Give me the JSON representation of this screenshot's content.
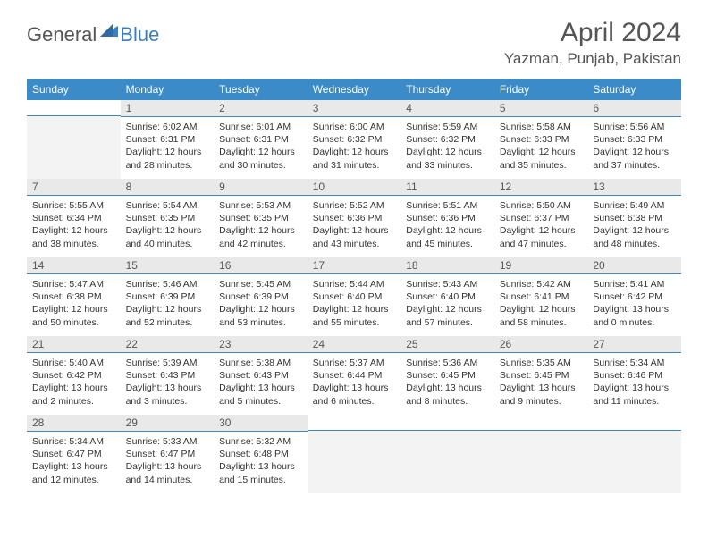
{
  "logo": {
    "text1": "General",
    "text2": "Blue"
  },
  "title": "April 2024",
  "location": "Yazman, Punjab, Pakistan",
  "colors": {
    "header_bg": "#3b8bc9",
    "header_fg": "#ffffff",
    "daynum_bg": "#e9e9e9",
    "daynum_border": "#3b8bc9",
    "logo_blue": "#3b7fbf",
    "text": "#555555",
    "empty_bg": "#f3f3f3"
  },
  "weekdays": [
    "Sunday",
    "Monday",
    "Tuesday",
    "Wednesday",
    "Thursday",
    "Friday",
    "Saturday"
  ],
  "weeks": [
    [
      {
        "day": "",
        "sunrise": "",
        "sunset": "",
        "daylight1": "",
        "daylight2": ""
      },
      {
        "day": "1",
        "sunrise": "Sunrise: 6:02 AM",
        "sunset": "Sunset: 6:31 PM",
        "daylight1": "Daylight: 12 hours",
        "daylight2": "and 28 minutes."
      },
      {
        "day": "2",
        "sunrise": "Sunrise: 6:01 AM",
        "sunset": "Sunset: 6:31 PM",
        "daylight1": "Daylight: 12 hours",
        "daylight2": "and 30 minutes."
      },
      {
        "day": "3",
        "sunrise": "Sunrise: 6:00 AM",
        "sunset": "Sunset: 6:32 PM",
        "daylight1": "Daylight: 12 hours",
        "daylight2": "and 31 minutes."
      },
      {
        "day": "4",
        "sunrise": "Sunrise: 5:59 AM",
        "sunset": "Sunset: 6:32 PM",
        "daylight1": "Daylight: 12 hours",
        "daylight2": "and 33 minutes."
      },
      {
        "day": "5",
        "sunrise": "Sunrise: 5:58 AM",
        "sunset": "Sunset: 6:33 PM",
        "daylight1": "Daylight: 12 hours",
        "daylight2": "and 35 minutes."
      },
      {
        "day": "6",
        "sunrise": "Sunrise: 5:56 AM",
        "sunset": "Sunset: 6:33 PM",
        "daylight1": "Daylight: 12 hours",
        "daylight2": "and 37 minutes."
      }
    ],
    [
      {
        "day": "7",
        "sunrise": "Sunrise: 5:55 AM",
        "sunset": "Sunset: 6:34 PM",
        "daylight1": "Daylight: 12 hours",
        "daylight2": "and 38 minutes."
      },
      {
        "day": "8",
        "sunrise": "Sunrise: 5:54 AM",
        "sunset": "Sunset: 6:35 PM",
        "daylight1": "Daylight: 12 hours",
        "daylight2": "and 40 minutes."
      },
      {
        "day": "9",
        "sunrise": "Sunrise: 5:53 AM",
        "sunset": "Sunset: 6:35 PM",
        "daylight1": "Daylight: 12 hours",
        "daylight2": "and 42 minutes."
      },
      {
        "day": "10",
        "sunrise": "Sunrise: 5:52 AM",
        "sunset": "Sunset: 6:36 PM",
        "daylight1": "Daylight: 12 hours",
        "daylight2": "and 43 minutes."
      },
      {
        "day": "11",
        "sunrise": "Sunrise: 5:51 AM",
        "sunset": "Sunset: 6:36 PM",
        "daylight1": "Daylight: 12 hours",
        "daylight2": "and 45 minutes."
      },
      {
        "day": "12",
        "sunrise": "Sunrise: 5:50 AM",
        "sunset": "Sunset: 6:37 PM",
        "daylight1": "Daylight: 12 hours",
        "daylight2": "and 47 minutes."
      },
      {
        "day": "13",
        "sunrise": "Sunrise: 5:49 AM",
        "sunset": "Sunset: 6:38 PM",
        "daylight1": "Daylight: 12 hours",
        "daylight2": "and 48 minutes."
      }
    ],
    [
      {
        "day": "14",
        "sunrise": "Sunrise: 5:47 AM",
        "sunset": "Sunset: 6:38 PM",
        "daylight1": "Daylight: 12 hours",
        "daylight2": "and 50 minutes."
      },
      {
        "day": "15",
        "sunrise": "Sunrise: 5:46 AM",
        "sunset": "Sunset: 6:39 PM",
        "daylight1": "Daylight: 12 hours",
        "daylight2": "and 52 minutes."
      },
      {
        "day": "16",
        "sunrise": "Sunrise: 5:45 AM",
        "sunset": "Sunset: 6:39 PM",
        "daylight1": "Daylight: 12 hours",
        "daylight2": "and 53 minutes."
      },
      {
        "day": "17",
        "sunrise": "Sunrise: 5:44 AM",
        "sunset": "Sunset: 6:40 PM",
        "daylight1": "Daylight: 12 hours",
        "daylight2": "and 55 minutes."
      },
      {
        "day": "18",
        "sunrise": "Sunrise: 5:43 AM",
        "sunset": "Sunset: 6:40 PM",
        "daylight1": "Daylight: 12 hours",
        "daylight2": "and 57 minutes."
      },
      {
        "day": "19",
        "sunrise": "Sunrise: 5:42 AM",
        "sunset": "Sunset: 6:41 PM",
        "daylight1": "Daylight: 12 hours",
        "daylight2": "and 58 minutes."
      },
      {
        "day": "20",
        "sunrise": "Sunrise: 5:41 AM",
        "sunset": "Sunset: 6:42 PM",
        "daylight1": "Daylight: 13 hours",
        "daylight2": "and 0 minutes."
      }
    ],
    [
      {
        "day": "21",
        "sunrise": "Sunrise: 5:40 AM",
        "sunset": "Sunset: 6:42 PM",
        "daylight1": "Daylight: 13 hours",
        "daylight2": "and 2 minutes."
      },
      {
        "day": "22",
        "sunrise": "Sunrise: 5:39 AM",
        "sunset": "Sunset: 6:43 PM",
        "daylight1": "Daylight: 13 hours",
        "daylight2": "and 3 minutes."
      },
      {
        "day": "23",
        "sunrise": "Sunrise: 5:38 AM",
        "sunset": "Sunset: 6:43 PM",
        "daylight1": "Daylight: 13 hours",
        "daylight2": "and 5 minutes."
      },
      {
        "day": "24",
        "sunrise": "Sunrise: 5:37 AM",
        "sunset": "Sunset: 6:44 PM",
        "daylight1": "Daylight: 13 hours",
        "daylight2": "and 6 minutes."
      },
      {
        "day": "25",
        "sunrise": "Sunrise: 5:36 AM",
        "sunset": "Sunset: 6:45 PM",
        "daylight1": "Daylight: 13 hours",
        "daylight2": "and 8 minutes."
      },
      {
        "day": "26",
        "sunrise": "Sunrise: 5:35 AM",
        "sunset": "Sunset: 6:45 PM",
        "daylight1": "Daylight: 13 hours",
        "daylight2": "and 9 minutes."
      },
      {
        "day": "27",
        "sunrise": "Sunrise: 5:34 AM",
        "sunset": "Sunset: 6:46 PM",
        "daylight1": "Daylight: 13 hours",
        "daylight2": "and 11 minutes."
      }
    ],
    [
      {
        "day": "28",
        "sunrise": "Sunrise: 5:34 AM",
        "sunset": "Sunset: 6:47 PM",
        "daylight1": "Daylight: 13 hours",
        "daylight2": "and 12 minutes."
      },
      {
        "day": "29",
        "sunrise": "Sunrise: 5:33 AM",
        "sunset": "Sunset: 6:47 PM",
        "daylight1": "Daylight: 13 hours",
        "daylight2": "and 14 minutes."
      },
      {
        "day": "30",
        "sunrise": "Sunrise: 5:32 AM",
        "sunset": "Sunset: 6:48 PM",
        "daylight1": "Daylight: 13 hours",
        "daylight2": "and 15 minutes."
      },
      {
        "day": "",
        "sunrise": "",
        "sunset": "",
        "daylight1": "",
        "daylight2": ""
      },
      {
        "day": "",
        "sunrise": "",
        "sunset": "",
        "daylight1": "",
        "daylight2": ""
      },
      {
        "day": "",
        "sunrise": "",
        "sunset": "",
        "daylight1": "",
        "daylight2": ""
      },
      {
        "day": "",
        "sunrise": "",
        "sunset": "",
        "daylight1": "",
        "daylight2": ""
      }
    ]
  ]
}
